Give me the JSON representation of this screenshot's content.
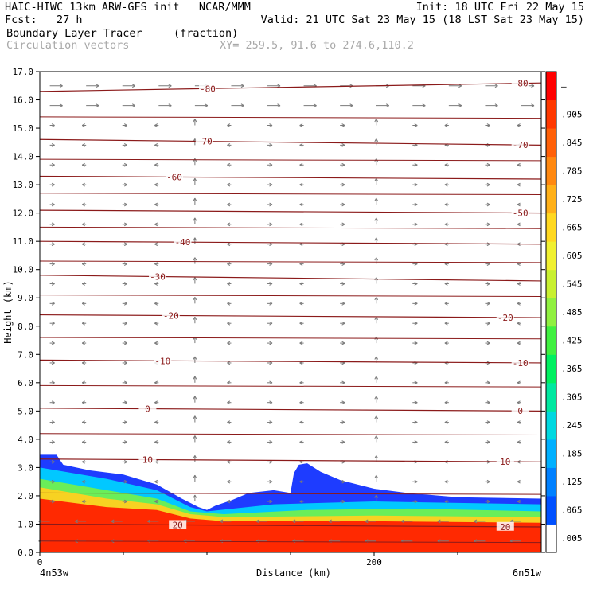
{
  "header": {
    "line1_left": "HAIC-HIWC 13km ARW-GFS init   NCAR/MMM",
    "line1_right": "Init: 18 UTC Fri 22 May 15",
    "line2_left": "Fcst:   27 h",
    "line2_right": "Valid: 21 UTC Sat 23 May 15 (18 LST Sat 23 May 15)",
    "field_name": "Boundary Layer Tracer",
    "field_units": "(fraction)",
    "vector_name": "Circulation vectors",
    "xy_range": "XY= 259.5, 91.6 to 274.6,110.2"
  },
  "chart_data": {
    "type": "heatmap",
    "xlabel": "Distance (km)",
    "ylabel": "Height (km)",
    "xlim": [
      0,
      300
    ],
    "ylim": [
      0,
      17
    ],
    "x_ticks": [
      "0",
      "200"
    ],
    "x_end_labels": [
      "4n53w",
      "6n51w"
    ],
    "y_ticks": [
      "0.0",
      "1.0",
      "2.0",
      "3.0",
      "4.0",
      "5.0",
      "6.0",
      "7.0",
      "8.0",
      "9.0",
      "10.0",
      "11.0",
      "12.0",
      "13.0",
      "14.0",
      "15.0",
      "16.0",
      "17.0"
    ],
    "colorbar_labels": [
      ".005",
      ".065",
      ".125",
      ".185",
      ".245",
      ".305",
      ".365",
      ".425",
      ".485",
      ".545",
      ".605",
      ".665",
      ".725",
      ".785",
      ".845",
      ".905",
      "–"
    ],
    "colorbar_colors": [
      "#ffffff",
      "#0050ff",
      "#0080ff",
      "#00b0ff",
      "#00d8e0",
      "#00e8a0",
      "#00f060",
      "#40f040",
      "#90f040",
      "#c8f030",
      "#f0f030",
      "#ffd820",
      "#ffb018",
      "#ff8810",
      "#ff6008",
      "#ff3800",
      "#ff0000"
    ],
    "tracer_top_km": [
      [
        0,
        3.45
      ],
      [
        10,
        3.45
      ],
      [
        14,
        3.1
      ],
      [
        30,
        2.9
      ],
      [
        50,
        2.75
      ],
      [
        70,
        2.4
      ],
      [
        85,
        1.9
      ],
      [
        95,
        1.6
      ],
      [
        100,
        1.5
      ],
      [
        105,
        1.65
      ],
      [
        115,
        1.85
      ],
      [
        125,
        2.1
      ],
      [
        140,
        2.2
      ],
      [
        150,
        2.1
      ],
      [
        152,
        2.8
      ],
      [
        155,
        3.1
      ],
      [
        160,
        3.15
      ],
      [
        168,
        2.85
      ],
      [
        180,
        2.55
      ],
      [
        200,
        2.25
      ],
      [
        220,
        2.1
      ],
      [
        250,
        1.95
      ],
      [
        300,
        1.9
      ]
    ],
    "tracer_layers": [
      {
        "value": 0.185,
        "top_km": [
          [
            0,
            3.0
          ],
          [
            40,
            2.6
          ],
          [
            70,
            2.2
          ],
          [
            90,
            1.6
          ],
          [
            100,
            1.45
          ],
          [
            140,
            1.7
          ],
          [
            200,
            1.8
          ],
          [
            300,
            1.7
          ]
        ]
      },
      {
        "value": 0.425,
        "top_km": [
          [
            0,
            2.6
          ],
          [
            40,
            2.2
          ],
          [
            70,
            1.9
          ],
          [
            90,
            1.45
          ],
          [
            110,
            1.35
          ],
          [
            160,
            1.5
          ],
          [
            220,
            1.55
          ],
          [
            300,
            1.45
          ]
        ]
      },
      {
        "value": 0.665,
        "top_km": [
          [
            0,
            2.3
          ],
          [
            40,
            1.9
          ],
          [
            70,
            1.7
          ],
          [
            90,
            1.35
          ],
          [
            110,
            1.25
          ],
          [
            200,
            1.3
          ],
          [
            300,
            1.25
          ]
        ]
      },
      {
        "value": 0.905,
        "top_km": [
          [
            0,
            1.9
          ],
          [
            40,
            1.6
          ],
          [
            70,
            1.5
          ],
          [
            90,
            1.2
          ],
          [
            110,
            1.1
          ],
          [
            200,
            1.1
          ],
          [
            300,
            1.05
          ]
        ]
      }
    ],
    "temperature_contours": [
      {
        "label": "-80",
        "y_km": [
          16.3,
          16.6
        ],
        "label_x": [
          100,
          287
        ]
      },
      {
        "label": "-70",
        "y_km": [
          14.6,
          14.4
        ],
        "label_x": [
          98,
          287
        ]
      },
      {
        "label": "-60",
        "y_km": [
          13.3,
          13.2
        ],
        "label_x": [
          80,
          null
        ]
      },
      {
        "label": "-50",
        "y_km": [
          12.1,
          12.0
        ],
        "label_x": [
          null,
          287
        ]
      },
      {
        "label": "-40",
        "y_km": [
          11.0,
          10.9
        ],
        "label_x": [
          85,
          null
        ]
      },
      {
        "label": "-30",
        "y_km": [
          9.8,
          9.6
        ],
        "label_x": [
          70,
          null
        ]
      },
      {
        "label": "-20",
        "y_km": [
          8.4,
          8.3
        ],
        "label_x": [
          78,
          278
        ]
      },
      {
        "label": "-10",
        "y_km": [
          6.8,
          6.7
        ],
        "label_x": [
          73,
          287
        ]
      },
      {
        "label": "0",
        "y_km": [
          5.1,
          5.0
        ],
        "label_x": [
          64,
          287
        ]
      },
      {
        "label": "10",
        "y_km": [
          3.3,
          3.2
        ],
        "label_x": [
          64,
          278
        ]
      },
      {
        "label": "20",
        "y_km": [
          1.0,
          0.9
        ],
        "label_x": [
          82,
          278
        ]
      }
    ],
    "extra_contours_km": [
      15.4,
      13.9,
      12.7,
      11.5,
      10.3,
      9.1,
      7.6,
      5.9,
      4.2,
      2.1,
      0.4
    ]
  }
}
